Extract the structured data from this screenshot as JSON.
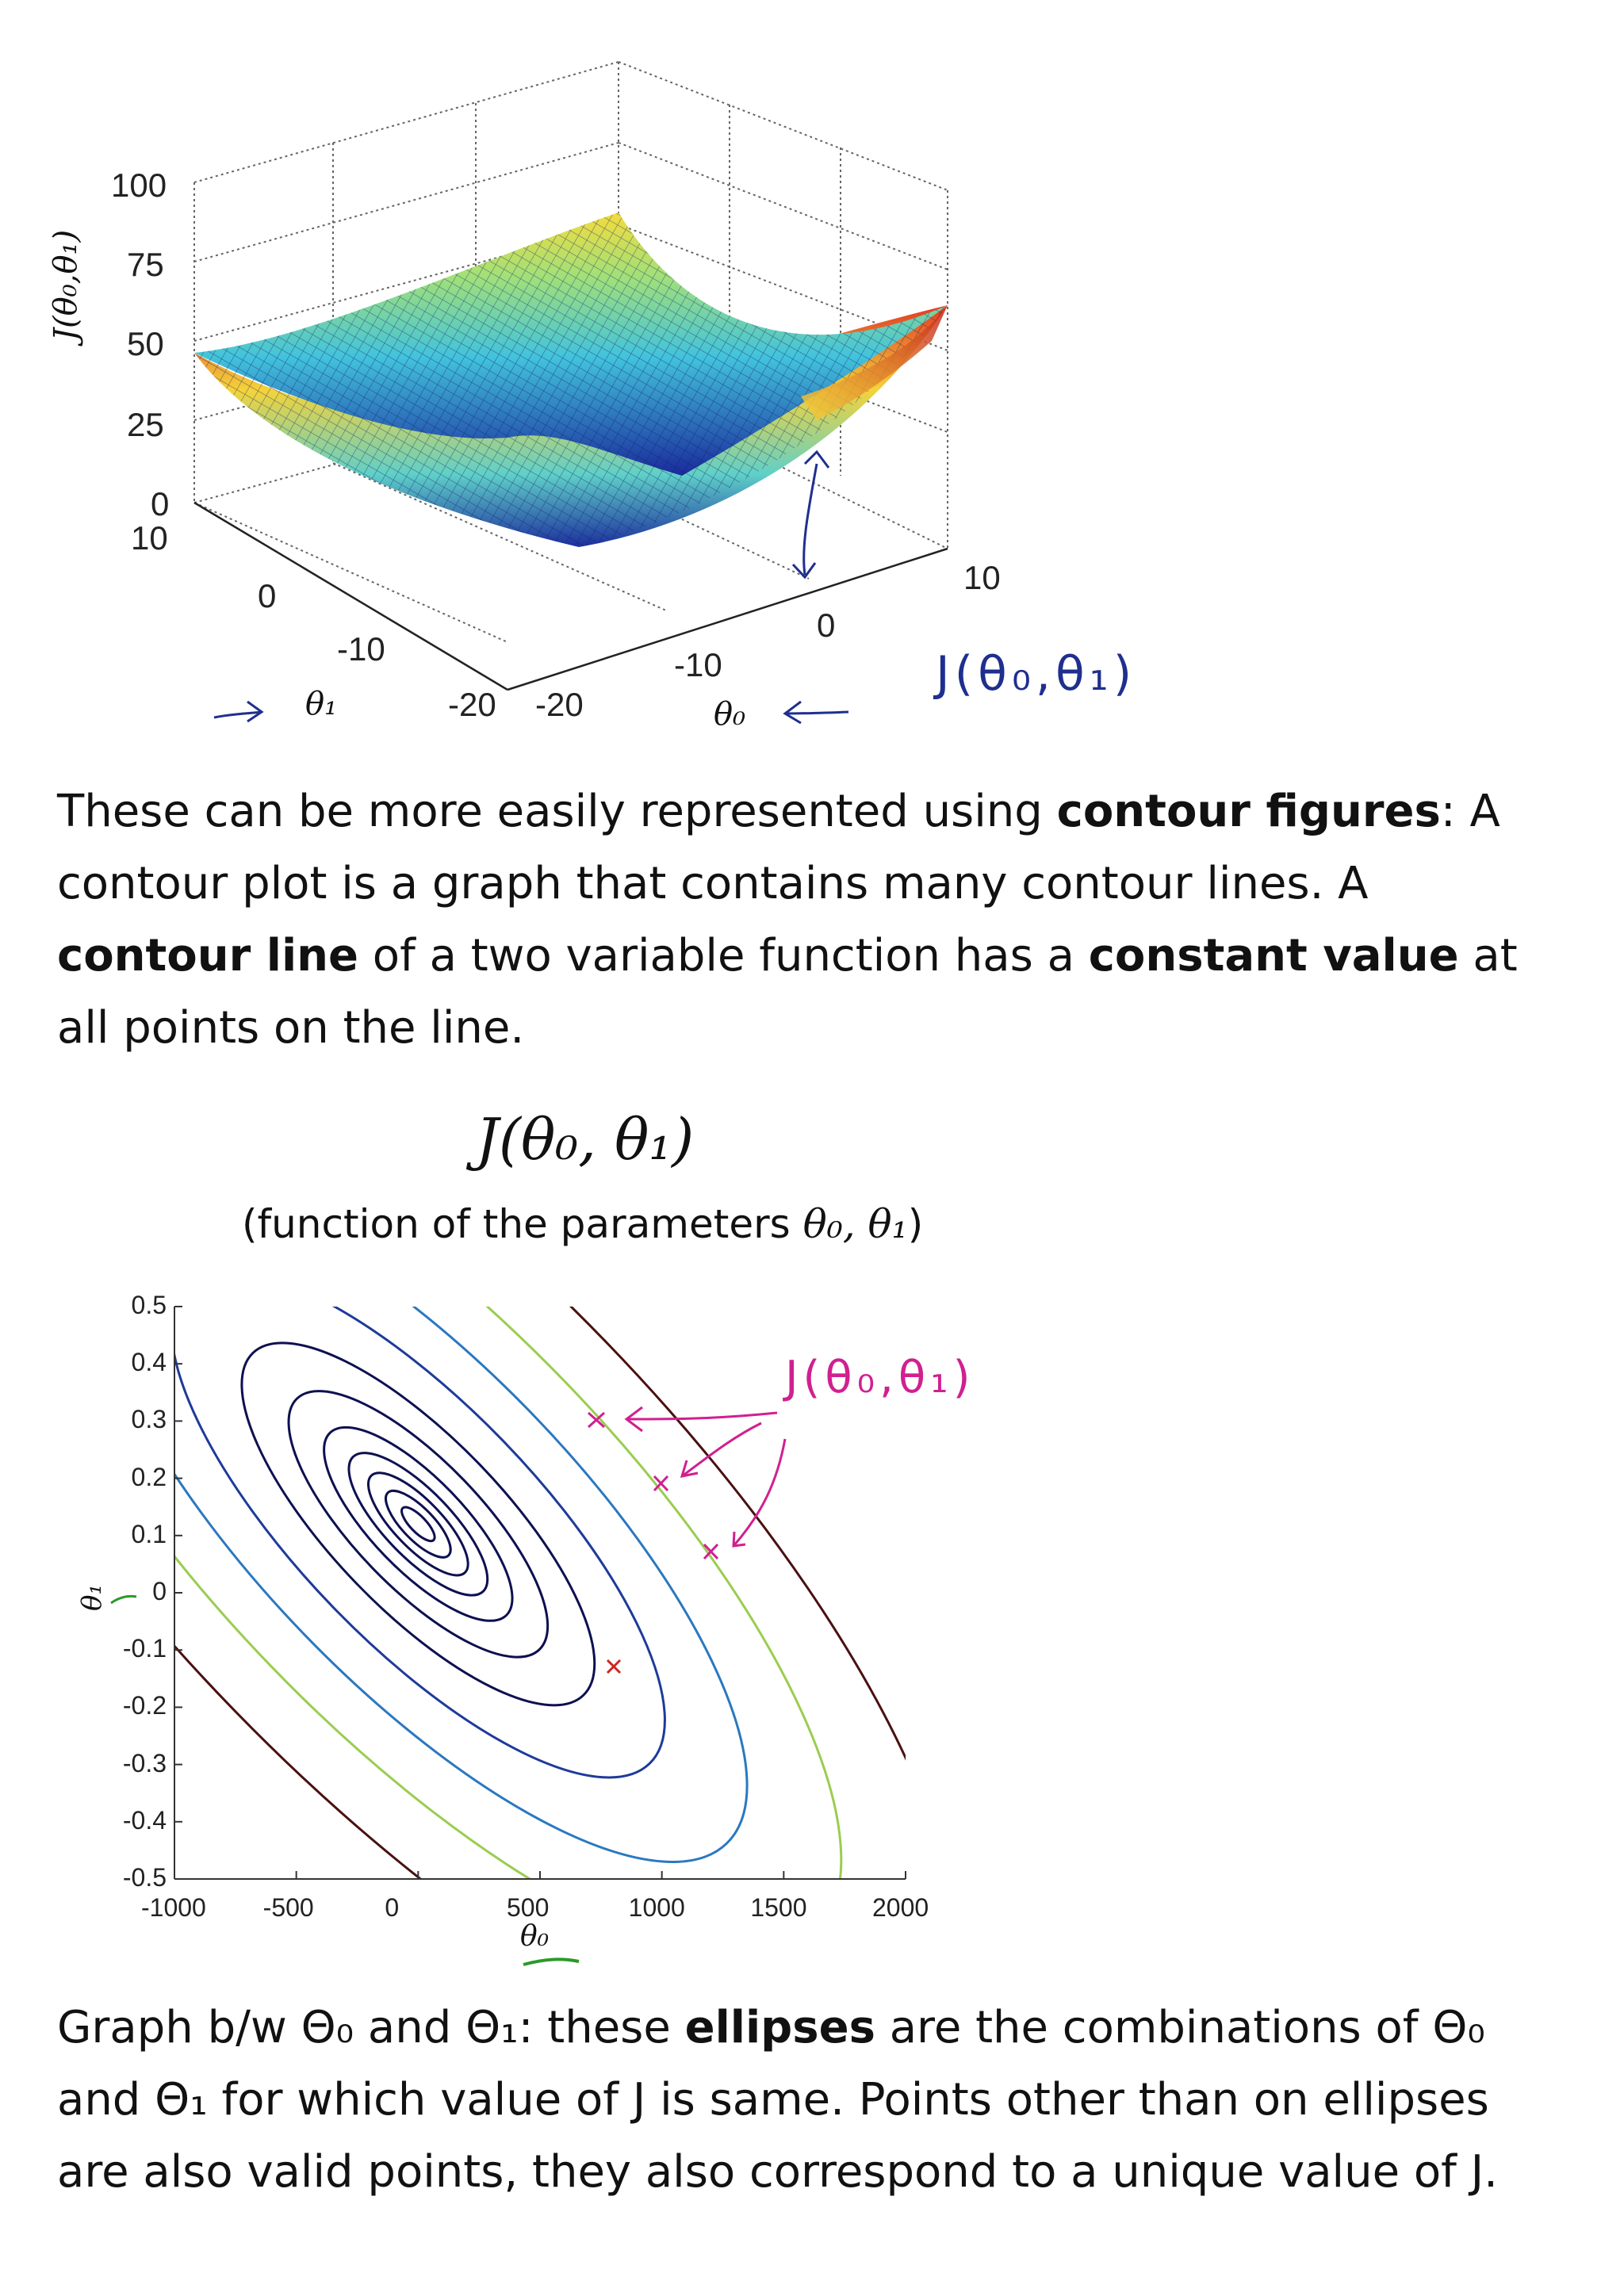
{
  "surface_plot": {
    "z_ticks": [
      "100",
      "75",
      "50",
      "25",
      "0"
    ],
    "z_axis_label": "J(θ₀,θ₁)",
    "theta1_ticks": [
      "10",
      "0",
      "-10",
      "-20"
    ],
    "theta0_ticks": [
      "-20",
      "-10",
      "0",
      "10"
    ],
    "theta1_label": "θ₁",
    "theta0_label": "θ₀",
    "handwritten_note": "J(θ₀,θ₁)",
    "colors": {
      "mesh_low": "#1a2a9c",
      "mesh_mid": "#3fc6d8",
      "mesh_high": "#f2d23b",
      "mesh_top": "#c8281e",
      "handwriting": "#1f2f8f"
    }
  },
  "paragraph1": {
    "t1": "These can be more easily represented using ",
    "b1": "contour figures",
    "t2": ": A contour plot is a graph that contains many contour lines. A ",
    "b2": "contour line",
    "t3": " of a two variable function has a ",
    "b3": "constant value",
    "t4": " at all points on the line."
  },
  "contour_plot": {
    "title": "J(θ₀, θ₁)",
    "subtitle_text": "(function of the parameters ",
    "subtitle_math": "θ₀, θ₁",
    "subtitle_close": ")",
    "y_ticks": [
      "0.5",
      "0.4",
      "0.3",
      "0.2",
      "0.1",
      "0",
      "-0.1",
      "-0.2",
      "-0.3",
      "-0.4",
      "-0.5"
    ],
    "x_ticks": [
      "-1000",
      "-500",
      "0",
      "500",
      "1000",
      "1500",
      "2000"
    ],
    "x_label": "θ₀",
    "y_label": "θ₁",
    "handwritten_note": "J(θ₀,θ₁)",
    "colors": {
      "inner": "#0d1050",
      "mid": "#1e3a9a",
      "outer_blue": "#2a78c0",
      "green": "#9acd50",
      "outer": "#4a1010",
      "annotation": "#d02090",
      "underline": "#2a9a2a"
    }
  },
  "chart_data": {
    "type": "contour",
    "xlabel": "θ₀",
    "ylabel": "θ₁",
    "xlim": [
      -1000,
      2000
    ],
    "ylim": [
      -0.5,
      0.5
    ],
    "x_ticks": [
      -1000,
      -500,
      0,
      500,
      1000,
      1500,
      2000
    ],
    "y_ticks": [
      -0.5,
      -0.4,
      -0.3,
      -0.2,
      -0.1,
      0,
      0.1,
      0.2,
      0.3,
      0.4,
      0.5
    ],
    "center": [
      0,
      0.12
    ],
    "marked_point": [
      800,
      -0.13
    ]
  },
  "paragraph2": {
    "t1": "Graph b/w Θ₀ and Θ₁: these ",
    "b1": "ellipses",
    "t2": " are the combinations of Θ₀ and Θ₁ for which value of J is same. Points other than on ellipses are also valid points, they also correspond to a unique value of J."
  }
}
